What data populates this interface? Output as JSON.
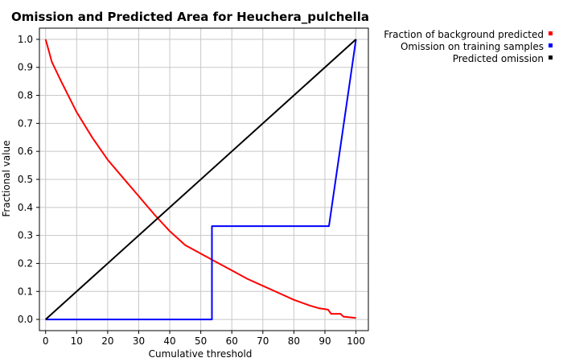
{
  "chart_data": {
    "type": "line",
    "title": "Omission and Predicted Area for Heuchera_pulchella",
    "xlabel": "Cumulative threshold",
    "ylabel": "Fractional value",
    "xlim": [
      -2,
      104
    ],
    "ylim": [
      -0.04,
      1.04
    ],
    "xticks": [
      0,
      10,
      20,
      30,
      40,
      50,
      60,
      70,
      80,
      90,
      100
    ],
    "yticks": [
      0.0,
      0.1,
      0.2,
      0.3,
      0.4,
      0.5,
      0.6,
      0.7,
      0.8,
      0.9,
      1.0
    ],
    "xtick_labels": [
      "0",
      "10",
      "20",
      "30",
      "40",
      "50",
      "60",
      "70",
      "80",
      "90",
      "100"
    ],
    "ytick_labels": [
      "0.0",
      "0.1",
      "0.2",
      "0.3",
      "0.4",
      "0.5",
      "0.6",
      "0.7",
      "0.8",
      "0.9",
      "1.0"
    ],
    "grid": true,
    "legend_position": "top-right outside",
    "series": [
      {
        "name": "Fraction of background predicted",
        "color": "#ff0000",
        "x": [
          0,
          1,
          2,
          5,
          10,
          15,
          20,
          25,
          30,
          35,
          40,
          45,
          50,
          55,
          60,
          65,
          70,
          75,
          80,
          85,
          88,
          91,
          92,
          95,
          96,
          100
        ],
        "y": [
          1.0,
          0.96,
          0.92,
          0.85,
          0.74,
          0.65,
          0.57,
          0.505,
          0.44,
          0.375,
          0.315,
          0.265,
          0.235,
          0.205,
          0.175,
          0.145,
          0.12,
          0.095,
          0.07,
          0.05,
          0.04,
          0.035,
          0.02,
          0.02,
          0.01,
          0.005
        ]
      },
      {
        "name": "Omission on training samples",
        "color": "#0000ff",
        "x": [
          0,
          53.6,
          53.6,
          91.3,
          100
        ],
        "y": [
          0.0,
          0.0,
          0.333,
          0.333,
          1.0
        ]
      },
      {
        "name": "Predicted omission",
        "color": "#000000",
        "x": [
          0,
          100
        ],
        "y": [
          0.0,
          1.0
        ]
      }
    ]
  }
}
